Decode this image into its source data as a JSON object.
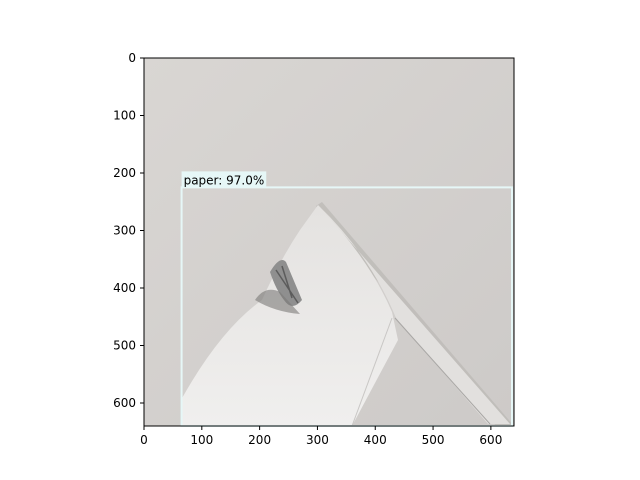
{
  "figure": {
    "type": "image-with-detection",
    "x_ticks": [
      "0",
      "100",
      "200",
      "300",
      "400",
      "500",
      "600"
    ],
    "y_ticks": [
      "0",
      "100",
      "200",
      "300",
      "400",
      "500",
      "600"
    ],
    "xlim": [
      0,
      640
    ],
    "ylim": [
      640,
      0
    ],
    "image": {
      "background_color": "#d8d5d2",
      "paper_color": "#e9e7e5",
      "box_color": "#e6f7f7"
    },
    "detection": {
      "label": "paper: 97.0%",
      "box": {
        "x_min": 65,
        "y_min": 225,
        "x_max": 640,
        "y_max": 640
      }
    }
  }
}
